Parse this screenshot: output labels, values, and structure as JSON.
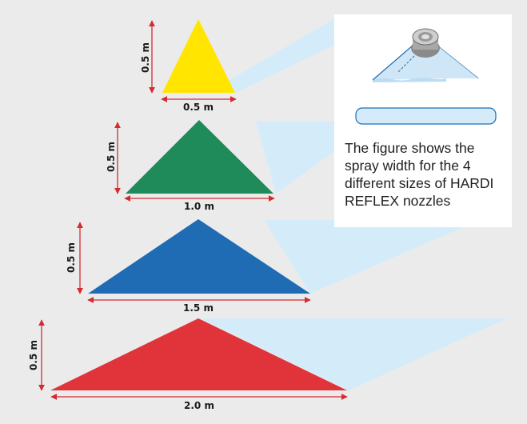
{
  "colors": {
    "background": "#ebebeb",
    "spray": "#d4ecf9",
    "dimension_line": "#d42a30",
    "yellow": "#ffe500",
    "green": "#1f8a5a",
    "blue": "#1f6cb5",
    "red": "#e0343a"
  },
  "caption": "The figure shows the spray width for the 4 different sizes of HARDI REFLEX nozzles",
  "nozzles": [
    {
      "color_name": "yellow",
      "height_label": "0.5 m",
      "width_label": "0.5 m"
    },
    {
      "color_name": "green",
      "height_label": "0.5 m",
      "width_label": "1.0 m"
    },
    {
      "color_name": "blue",
      "height_label": "0.5 m",
      "width_label": "1.5 m"
    },
    {
      "color_name": "red",
      "height_label": "0.5 m",
      "width_label": "2.0 m"
    }
  ],
  "icons": [
    "nozzle-icon",
    "spray-fan-icon",
    "spray-pattern-icon"
  ]
}
